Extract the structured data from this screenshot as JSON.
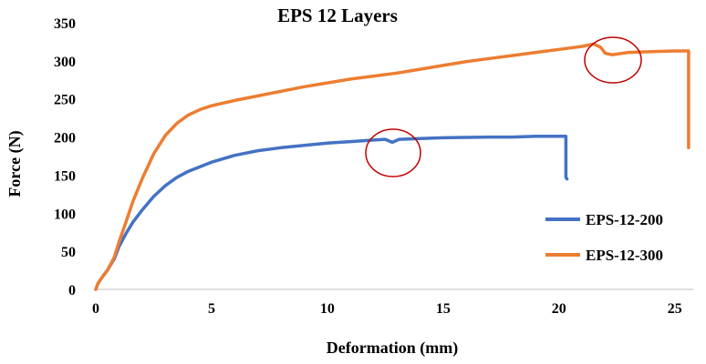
{
  "chart_data": {
    "type": "line",
    "title": "EPS 12 Layers",
    "xlabel": "Deformation (mm)",
    "ylabel": "Force (N)",
    "xlim": [
      0,
      25.8
    ],
    "ylim": [
      0,
      350
    ],
    "xticks": [
      0,
      5,
      10,
      15,
      20,
      25
    ],
    "yticks": [
      0,
      50,
      100,
      150,
      200,
      250,
      300,
      350
    ],
    "grid": false,
    "legend_position": "right",
    "series": [
      {
        "name": "EPS-12-200",
        "color": "#4472C4",
        "x": [
          0,
          0.1,
          0.3,
          0.5,
          0.8,
          1.0,
          1.3,
          1.6,
          2.0,
          2.5,
          3.0,
          3.5,
          4.0,
          5.0,
          6.0,
          7.0,
          8.0,
          9.0,
          10.0,
          11.0,
          12.0,
          12.5,
          12.8,
          13.1,
          14.0,
          15.0,
          16.0,
          17.0,
          18.0,
          19.0,
          20.0,
          20.3,
          20.3,
          20.35
        ],
        "values": [
          0,
          8,
          17,
          25,
          40,
          56,
          73,
          88,
          104,
          122,
          136,
          147,
          155,
          167,
          176,
          182,
          186,
          189,
          192,
          194,
          196,
          197,
          193,
          197,
          198,
          199,
          199.5,
          200,
          200,
          201,
          201,
          201,
          147,
          145
        ]
      },
      {
        "name": "EPS-12-300",
        "color": "#ED7D31",
        "x": [
          0,
          0.1,
          0.3,
          0.5,
          0.8,
          1.0,
          1.3,
          1.6,
          2.0,
          2.5,
          3.0,
          3.5,
          4.0,
          4.5,
          5.0,
          6.0,
          7.0,
          8.0,
          9.0,
          10.0,
          11.0,
          12.0,
          13.0,
          14.0,
          15.0,
          16.0,
          17.0,
          18.0,
          19.0,
          20.0,
          21.0,
          21.5,
          21.8,
          22.0,
          22.3,
          23.0,
          24.0,
          25.0,
          25.6,
          25.6
        ],
        "values": [
          0,
          8,
          17,
          25,
          42,
          62,
          88,
          115,
          145,
          178,
          202,
          218,
          229,
          236,
          241,
          248,
          254,
          260,
          266,
          271,
          276,
          280,
          284,
          289,
          294,
          299,
          303,
          307,
          311,
          315,
          319,
          322,
          318,
          310,
          308,
          311,
          312,
          313,
          313,
          186
        ]
      }
    ]
  }
}
